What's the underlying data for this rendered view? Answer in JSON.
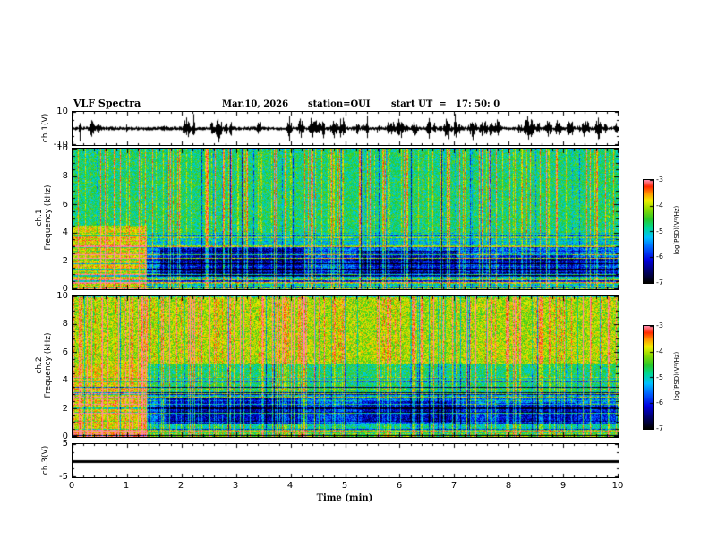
{
  "header": {
    "title": "VLF Spectra",
    "date": "Mar.10, 2026",
    "station": "station=OUI",
    "start_ut": "start UT  =   17: 50: 0"
  },
  "axes": {
    "time": {
      "label": "Time (min)",
      "min": 0,
      "max": 10,
      "ticks": [
        0,
        1,
        2,
        3,
        4,
        5,
        6,
        7,
        8,
        9,
        10
      ],
      "minor_step": 0.2
    },
    "ch1_volts": {
      "label": "ch.1(V)",
      "min": -10,
      "max": 10,
      "ticks": [
        10,
        -10
      ],
      "all_ticks": [
        10,
        0,
        -10
      ],
      "minor_step": 5
    },
    "freq_ch1": {
      "channel": "ch.1",
      "label": "Frequency (kHz)",
      "min": 0,
      "max": 10,
      "ticks": [
        10,
        8,
        6,
        4,
        2,
        0
      ],
      "minor_step": 0.5
    },
    "freq_ch2": {
      "channel": "ch.2",
      "label": "Frequency (kHz)",
      "min": 0,
      "max": 10,
      "ticks": [
        10,
        8,
        6,
        4,
        2,
        0
      ],
      "minor_step": 0.5
    },
    "ch3_volts": {
      "label": "ch.3(V)",
      "min": -5,
      "max": 5,
      "ticks": [
        5,
        -5
      ],
      "all_ticks": [
        5,
        0,
        -5
      ],
      "minor_step": 2.5
    }
  },
  "colorbar": {
    "label": "log(PSD)(V²/Hz)",
    "min": -7,
    "max": -3,
    "ticks": [
      -3,
      -4,
      -5,
      -6,
      -7
    ],
    "stops": [
      [
        0,
        "#000000"
      ],
      [
        0.1,
        "#000060"
      ],
      [
        0.22,
        "#0000e0"
      ],
      [
        0.34,
        "#0060ff"
      ],
      [
        0.44,
        "#00c0ff"
      ],
      [
        0.54,
        "#00d890"
      ],
      [
        0.62,
        "#28c828"
      ],
      [
        0.72,
        "#90dc00"
      ],
      [
        0.8,
        "#f0f000"
      ],
      [
        0.87,
        "#ff9800"
      ],
      [
        0.94,
        "#ff2800"
      ],
      [
        1,
        "#ff88a8"
      ]
    ]
  },
  "chart_data": [
    {
      "type": "line",
      "name": "ch1-waveform",
      "ylabel": "ch.1(V)",
      "xlim": [
        0,
        10
      ],
      "ylim": [
        -10,
        10
      ],
      "description": "Continuous broadband noise centred on 0 V with envelope about ±1–3 V and frequent impulsive sferic bursts reaching roughly ±8 V across the full 10-minute record",
      "render": {
        "seed": 20260310,
        "base_amp": 1.1,
        "bursts": 70,
        "burst_amp_min": 2.2,
        "burst_amp_max": 8.5
      }
    },
    {
      "type": "heatmap",
      "name": "ch1-spectrogram",
      "ylabel": "ch.1 Frequency (kHz)",
      "xlim": [
        0,
        10
      ],
      "ylim": [
        0,
        10
      ],
      "zlim": [
        -7,
        -3
      ],
      "zlabel": "log(PSD)(V²/Hz)",
      "description": "Mid-level PSD (~-5, green) above ~3.5 kHz with dense vertical sferic streaks up to ~-3 (red); strong red/yellow block below ~4.5 kHz during the first ~1.3 min; low-PSD blue/dark patches (~-6.5) at 1–3 kHz near 1.6–4.3, 5.2–7.0 and 7.8–9.2 min; multicoloured striped band below ~0.5 kHz; many thin horizontal spectral lines in the low-frequency region",
      "render": {
        "seed": 11,
        "noise": 0.13,
        "streak_density": 0.2,
        "streak_strength": 0.32,
        "dark_streak_density": 0.07,
        "dark_streak_strength": 0.26,
        "hline_count": 30,
        "base_regions": [
          {
            "t": [
              0,
              10
            ],
            "f": [
              3.6,
              10
            ],
            "v": 0.57
          },
          {
            "t": [
              0,
              10
            ],
            "f": [
              0,
              3.6
            ],
            "v": 0.36
          },
          {
            "t": [
              1.35,
              10
            ],
            "f": [
              2.9,
              3.6
            ],
            "v": 0.45
          },
          {
            "t": [
              0,
              1.35
            ],
            "f": [
              0,
              4.5
            ],
            "v": 0.78
          },
          {
            "t": [
              1.35,
              10
            ],
            "f": [
              0.55,
              0.9
            ],
            "v": 0.52
          },
          {
            "t": [
              1.35,
              10
            ],
            "f": [
              0,
              0.55
            ],
            "v": 0.5
          },
          {
            "t": [
              1.6,
              4.25
            ],
            "f": [
              0.9,
              2.9
            ],
            "v": 0.18
          },
          {
            "t": [
              4.25,
              5.2
            ],
            "f": [
              0.9,
              2.4
            ],
            "v": 0.3
          },
          {
            "t": [
              5.2,
              7.05
            ],
            "f": [
              1,
              2.7
            ],
            "v": 0.19
          },
          {
            "t": [
              7.05,
              7.8
            ],
            "f": [
              0.9,
              2.3
            ],
            "v": 0.3
          },
          {
            "t": [
              7.8,
              9.15
            ],
            "f": [
              0.9,
              2.5
            ],
            "v": 0.2
          },
          {
            "t": [
              9.15,
              10
            ],
            "f": [
              0.9,
              2.3
            ],
            "v": 0.26
          }
        ]
      }
    },
    {
      "type": "heatmap",
      "name": "ch2-spectrogram",
      "ylabel": "ch.2 Frequency (kHz)",
      "xlim": [
        0,
        10
      ],
      "ylim": [
        0,
        10
      ],
      "zlim": [
        -7,
        -3
      ],
      "zlabel": "log(PSD)(V²/Hz)",
      "description": "High PSD (~-3.5, orange-red) above ~5 kHz for the whole record; green mid band 3–5 kHz; red/yellow block below ~5 kHz during the first ~1.3 min; low-PSD blue patches at 1–2.8 kHz near 1.7–4.2, 5.3–7.0 and 7.8–9.2 min; multicoloured striped band below ~0.5 kHz",
      "render": {
        "seed": 47,
        "noise": 0.13,
        "streak_density": 0.22,
        "streak_strength": 0.3,
        "dark_streak_density": 0.06,
        "dark_streak_strength": 0.24,
        "hline_count": 30,
        "base_regions": [
          {
            "t": [
              0,
              10
            ],
            "f": [
              5.2,
              10
            ],
            "v": 0.74
          },
          {
            "t": [
              0,
              10
            ],
            "f": [
              3.2,
              5.2
            ],
            "v": 0.56
          },
          {
            "t": [
              0,
              10
            ],
            "f": [
              0,
              3.2
            ],
            "v": 0.36
          },
          {
            "t": [
              1.35,
              10
            ],
            "f": [
              2.8,
              3.2
            ],
            "v": 0.45
          },
          {
            "t": [
              0,
              1.35
            ],
            "f": [
              0,
              5.2
            ],
            "v": 0.78
          },
          {
            "t": [
              1.35,
              10
            ],
            "f": [
              0.55,
              0.9
            ],
            "v": 0.52
          },
          {
            "t": [
              1.35,
              10
            ],
            "f": [
              0,
              0.55
            ],
            "v": 0.5
          },
          {
            "t": [
              1.7,
              4.2
            ],
            "f": [
              0.9,
              2.8
            ],
            "v": 0.18
          },
          {
            "t": [
              4.2,
              5.3
            ],
            "f": [
              0.9,
              2.4
            ],
            "v": 0.3
          },
          {
            "t": [
              5.3,
              7
            ],
            "f": [
              1,
              2.6
            ],
            "v": 0.19
          },
          {
            "t": [
              7,
              7.8
            ],
            "f": [
              0.9,
              2.3
            ],
            "v": 0.3
          },
          {
            "t": [
              7.8,
              9.2
            ],
            "f": [
              0.9,
              2.4
            ],
            "v": 0.2
          },
          {
            "t": [
              9.2,
              10
            ],
            "f": [
              0.9,
              2.3
            ],
            "v": 0.26
          }
        ]
      }
    },
    {
      "type": "line",
      "name": "ch3-waveform",
      "ylabel": "ch.3(V)",
      "xlim": [
        0,
        10
      ],
      "ylim": [
        -5,
        5
      ],
      "description": "Flat trace at 0 V for the entire record (channel inactive)",
      "render": {
        "flat": true,
        "value": 0,
        "seed": 3
      }
    }
  ]
}
